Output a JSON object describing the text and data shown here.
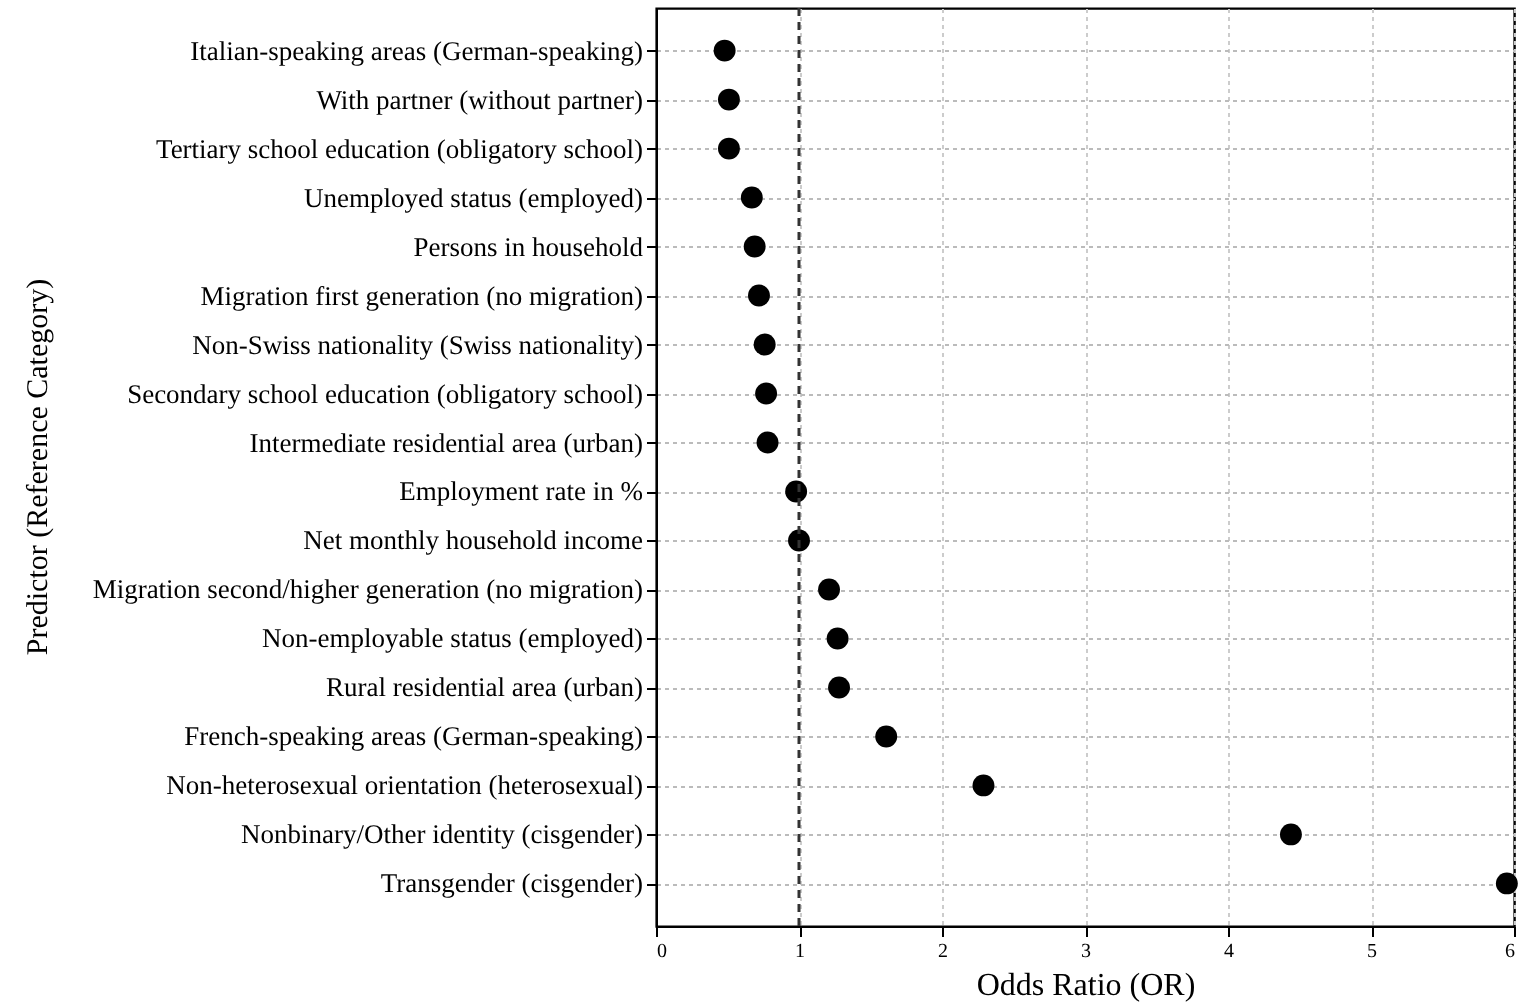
{
  "chart_data": {
    "type": "scatter",
    "xlabel": "Odds Ratio (OR)",
    "ylabel": "Predictor (Reference Category)",
    "categories": [
      "Italian-speaking areas (German-speaking)",
      "With partner (without partner)",
      "Tertiary school education (obligatory school)",
      "Unemployed status (employed)",
      "Persons in household",
      "Migration first generation (no migration)",
      "Non-Swiss nationality (Swiss nationality)",
      "Secondary school education (obligatory school)",
      "Intermediate residential area (urban)",
      "Employment rate in %",
      "Net monthly household income",
      "Migration second/higher generation (no migration)",
      "Non-employable status (employed)",
      "Rural residential area (urban)",
      "French-speaking areas (German-speaking)",
      "Non-heterosexual orientation (heterosexual)",
      "Nonbinary/Other identity (cisgender)",
      "Transgender (cisgender)"
    ],
    "orientation": "horizontal",
    "series": [
      {
        "color": "#000000",
        "values": [
          0.48,
          0.51,
          0.51,
          0.67,
          0.69,
          0.72,
          0.76,
          0.77,
          0.78,
          0.98,
          1.0,
          1.21,
          1.27,
          1.28,
          1.61,
          2.29,
          4.44,
          5.95
        ]
      }
    ],
    "xlim": [
      0,
      6
    ],
    "xticks": [
      0,
      1,
      2,
      3,
      4,
      5,
      6
    ],
    "ref_lines": [
      {
        "axis": "x",
        "value": 1,
        "color": "#333333",
        "line_style": "dashed"
      }
    ],
    "grid": true,
    "marker": "circle"
  }
}
